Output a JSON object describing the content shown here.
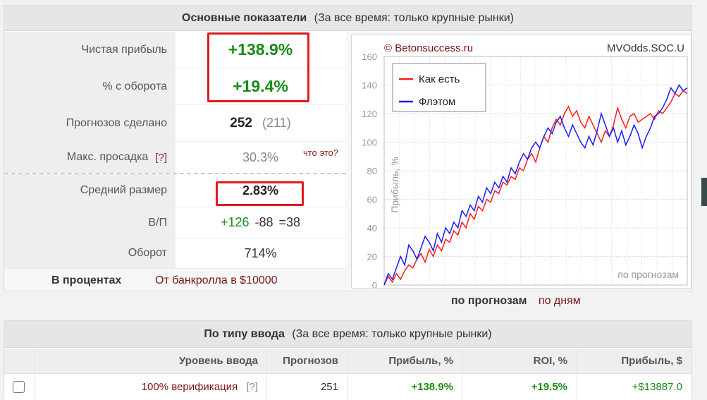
{
  "summary": {
    "title": "Основные показатели",
    "subtitle": "(За все время: только крупные рынки)",
    "rows": {
      "net_profit": {
        "label": "Чистая прибыль",
        "value": "+138.9%"
      },
      "turnover_pct": {
        "label": "% с оборота",
        "value": "+19.4%"
      },
      "predictions": {
        "label": "Прогнозов сделано",
        "value": "252",
        "extra": "(211)"
      },
      "drawdown": {
        "label": "Макс. просадка",
        "help": "[?]",
        "value": "30.3%",
        "what": "что это?"
      },
      "avg_size": {
        "label": "Средний размер",
        "value": "2.83%"
      },
      "wl": {
        "label": "В/П",
        "wins": "+126",
        "losses_sign": "-",
        "losses": "88",
        "draws": "=38"
      },
      "turnover": {
        "label": "Оборот",
        "value": "714%"
      }
    },
    "mode_active": "В процентах",
    "mode_link": "От банкролла в $10000",
    "chart_tab_active": "по прогнозам",
    "chart_tab_link": "по дням"
  },
  "chart_data": {
    "type": "line",
    "copyright": "© Betonsuccess.ru",
    "id": "MVOdds.SOC.U",
    "ylabel": "Прибыль, %",
    "xlabel_inside": "по прогнозам",
    "ylim": [
      0,
      160
    ],
    "yticks": [
      0,
      20,
      40,
      60,
      80,
      100,
      120,
      140,
      160
    ],
    "grid": true,
    "legend_position": "top-left",
    "series": [
      {
        "name": "Как есть",
        "color": "#ff1a1a",
        "values": [
          0,
          6,
          2,
          8,
          4,
          10,
          14,
          12,
          18,
          22,
          16,
          25,
          20,
          28,
          24,
          32,
          30,
          38,
          35,
          44,
          40,
          50,
          46,
          55,
          52,
          60,
          58,
          66,
          64,
          72,
          70,
          76,
          74,
          82,
          80,
          88,
          92,
          86,
          96,
          104,
          100,
          110,
          116,
          112,
          120,
          125,
          118,
          122,
          114,
          110,
          118,
          112,
          106,
          100,
          108,
          104,
          112,
          124,
          116,
          110,
          118,
          120,
          114,
          116,
          118,
          120,
          116,
          122,
          120,
          124,
          128,
          134,
          132,
          136,
          134
        ]
      },
      {
        "name": "Флэтом",
        "color": "#1a1aff",
        "values": [
          0,
          8,
          4,
          12,
          20,
          14,
          28,
          24,
          18,
          26,
          34,
          30,
          24,
          36,
          30,
          40,
          36,
          44,
          40,
          52,
          48,
          56,
          52,
          62,
          58,
          68,
          64,
          72,
          68,
          76,
          72,
          82,
          78,
          86,
          92,
          88,
          96,
          100,
          96,
          104,
          110,
          106,
          114,
          118,
          110,
          104,
          112,
          106,
          100,
          96,
          104,
          98,
          108,
          120,
          112,
          104,
          110,
          100,
          108,
          98,
          104,
          112,
          106,
          96,
          104,
          110,
          118,
          120,
          124,
          130,
          138,
          134,
          140,
          136,
          138
        ]
      }
    ]
  },
  "by_entry": {
    "title": "По типу ввода",
    "subtitle": "(За все время: только крупные рынки)",
    "columns": [
      "Уровень ввода",
      "Прогнозов",
      "Прибыль, %",
      "ROI, %",
      "Прибыль, $"
    ],
    "row": {
      "level": "100% верификация",
      "help": "[?]",
      "predictions": "251",
      "profit_pct": "+138.9%",
      "roi": "+19.5%",
      "profit_usd": "+$13887.0"
    }
  }
}
